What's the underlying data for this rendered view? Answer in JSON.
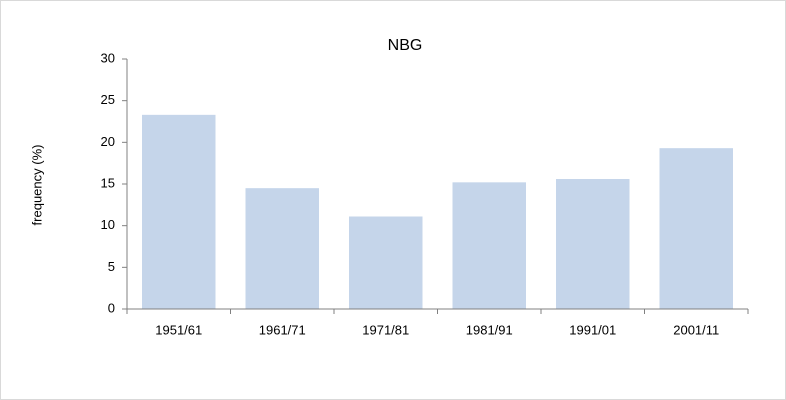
{
  "chart_data": {
    "type": "bar",
    "title": "NBG",
    "ylabel": "frequency  (%)",
    "categories": [
      "1951/61",
      "1961/71",
      "1971/81",
      "1981/91",
      "1991/01",
      "2001/11"
    ],
    "values": [
      23.3,
      14.5,
      11.1,
      15.2,
      15.6,
      19.3
    ],
    "color": "#c5d5ea",
    "ylim": [
      0,
      30
    ],
    "yticks": [
      0,
      5,
      10,
      15,
      20,
      25,
      30
    ],
    "grid": false
  }
}
